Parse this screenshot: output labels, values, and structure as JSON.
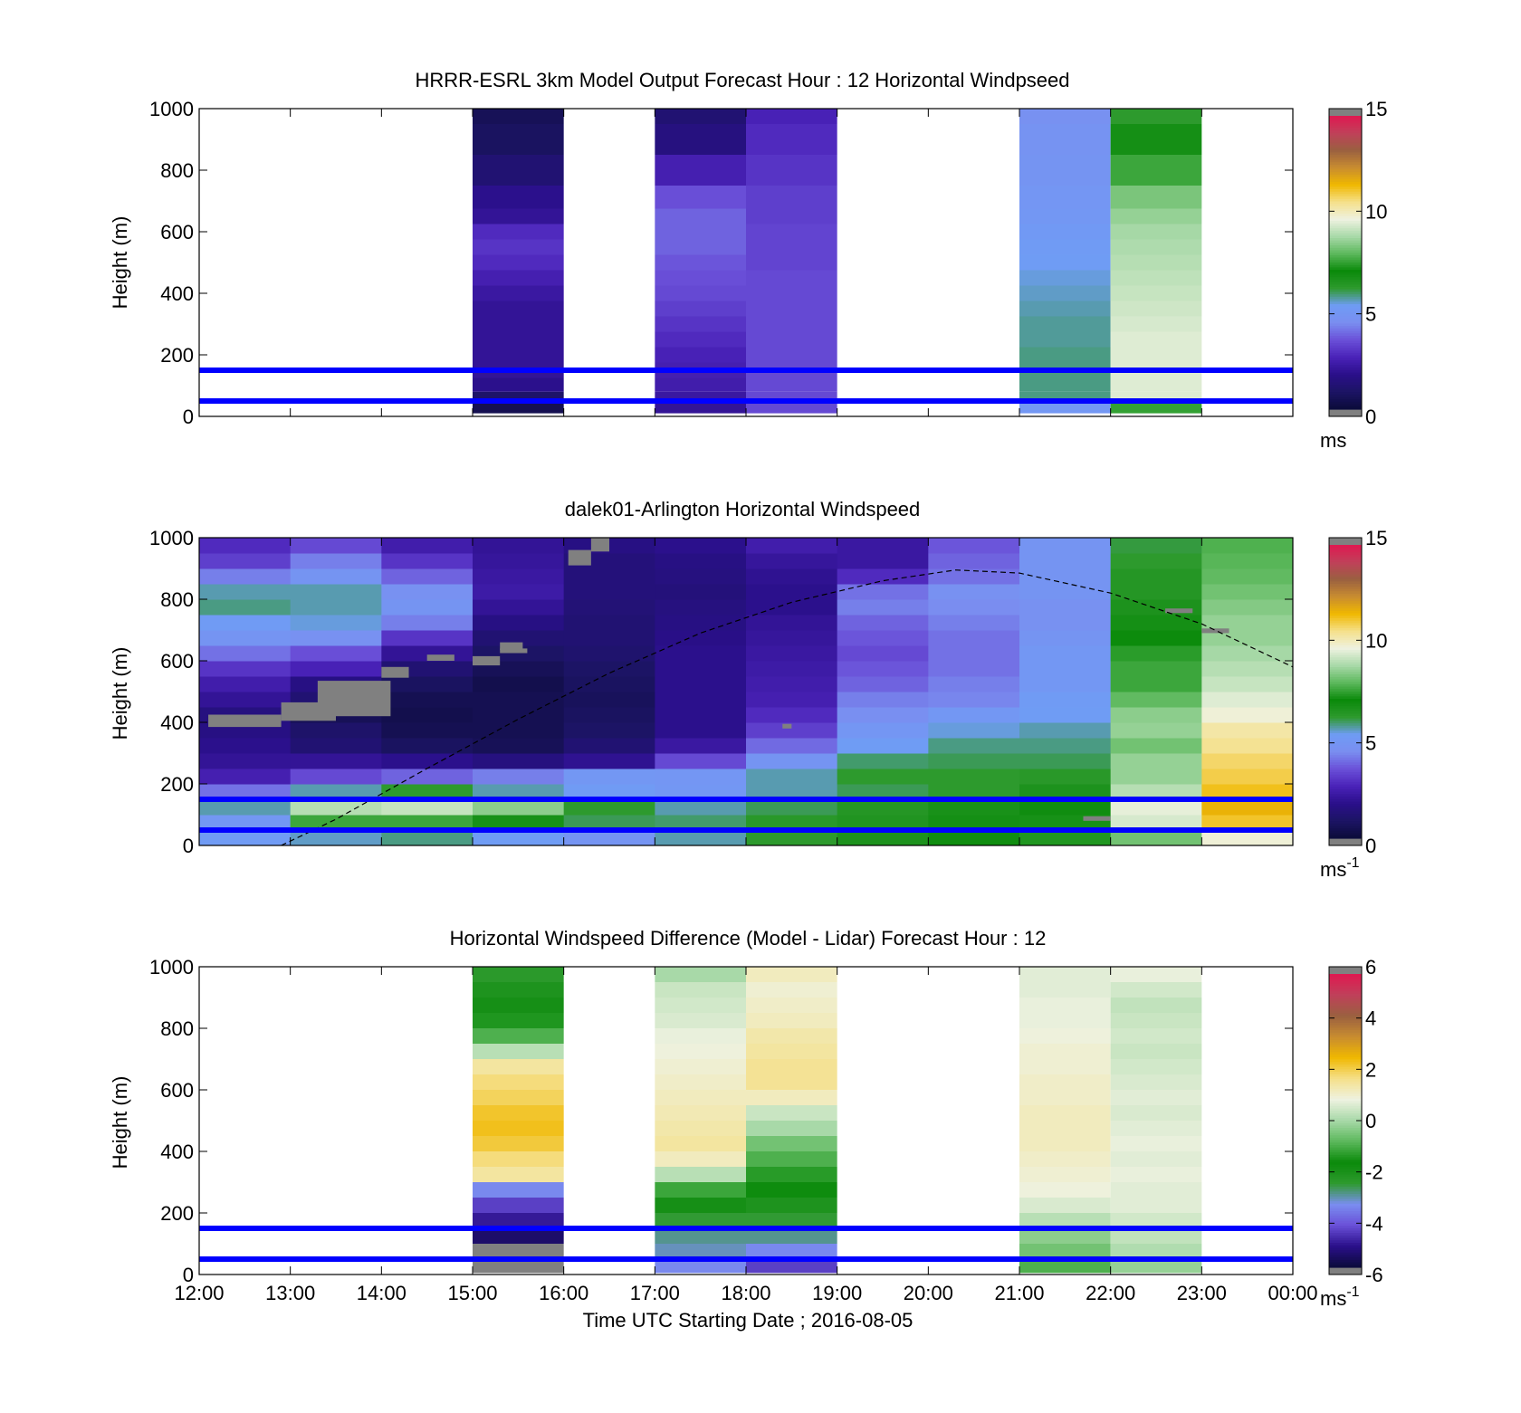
{
  "figure": {
    "x_tick_labels": [
      "12:00",
      "13:00",
      "14:00",
      "15:00",
      "16:00",
      "17:00",
      "18:00",
      "19:00",
      "20:00",
      "21:00",
      "22:00",
      "23:00",
      "00:00"
    ],
    "xlabel": "Time UTC  Starting Date ; 2016-08-05",
    "line_color": "#0000ff",
    "missing_color": "#808080"
  },
  "colormap": {
    "wind": [
      "#0b0b3a",
      "#1c1464",
      "#2a0f8a",
      "#4a22b8",
      "#6a50d8",
      "#7a8ef0",
      "#6f9cf5",
      "#2e9a2e",
      "#0a8a0a",
      "#5cb85c",
      "#a8d9a8",
      "#eef2e0",
      "#f5e08a",
      "#f0b800",
      "#c88c30",
      "#9a6040",
      "#c0405a",
      "#e01850"
    ],
    "diff": [
      "#0b0b3a",
      "#2a0f8a",
      "#6a50d8",
      "#7a8ef0",
      "#2e9a2e",
      "#0a8a0a",
      "#5cb85c",
      "#a8d9a8",
      "#eef2e0",
      "#f5e08a",
      "#f0b800",
      "#c88c30",
      "#9a6040",
      "#c0405a",
      "#e01850"
    ]
  },
  "chart_data": [
    {
      "type": "heatmap",
      "title": "HRRR-ESRL 3km Model Output   Forecast Hour : 12 Horizontal Windpseed",
      "ylabel": "Height (m)",
      "xlim": [
        12,
        24
      ],
      "ylim": [
        0,
        1000
      ],
      "y_ticks": [
        0,
        200,
        400,
        600,
        800,
        1000
      ],
      "reference_lines_m": [
        50,
        150
      ],
      "colorbar": {
        "range": [
          0,
          15
        ],
        "ticks": [
          0,
          5,
          10,
          15
        ],
        "unit": "ms"
      },
      "columns": [
        {
          "start_hour": 15,
          "end_hour": 16,
          "heights_m": [
            30,
            60,
            100,
            150,
            200,
            250,
            300,
            350,
            400,
            450,
            500,
            550,
            600,
            650,
            700,
            800,
            900,
            1000
          ],
          "values": [
            0.5,
            1.0,
            1.8,
            2.0,
            2.0,
            2.0,
            2.0,
            2.0,
            2.2,
            2.5,
            2.8,
            3.0,
            2.8,
            2.0,
            1.8,
            1.2,
            0.8,
            0.6
          ]
        },
        {
          "start_hour": 17,
          "end_hour": 18,
          "heights_m": [
            30,
            60,
            100,
            150,
            200,
            250,
            300,
            350,
            400,
            450,
            500,
            550,
            600,
            650,
            700,
            800,
            900,
            1000
          ],
          "values": [
            2.0,
            2.2,
            2.4,
            2.5,
            2.6,
            2.8,
            3.0,
            3.2,
            3.4,
            3.5,
            3.6,
            3.8,
            3.8,
            3.8,
            3.5,
            2.5,
            1.5,
            1.2
          ]
        },
        {
          "start_hour": 18,
          "end_hour": 19,
          "heights_m": [
            30,
            60,
            100,
            150,
            200,
            250,
            300,
            350,
            400,
            450,
            500,
            550,
            600,
            650,
            700,
            800,
            900,
            1000
          ],
          "values": [
            3.4,
            3.4,
            3.4,
            3.4,
            3.4,
            3.4,
            3.4,
            3.4,
            3.4,
            3.4,
            3.3,
            3.3,
            3.3,
            3.2,
            3.2,
            3.0,
            2.8,
            2.6
          ]
        },
        {
          "start_hour": 21,
          "end_hour": 22,
          "heights_m": [
            30,
            60,
            100,
            150,
            200,
            250,
            300,
            350,
            400,
            450,
            500,
            550,
            600,
            650,
            700,
            800,
            900,
            1000
          ],
          "values": [
            5.0,
            5.8,
            5.8,
            5.8,
            5.8,
            5.7,
            5.7,
            5.6,
            5.5,
            5.4,
            5.3,
            5.2,
            5.1,
            5.0,
            4.9,
            4.8,
            4.7,
            4.6
          ]
        },
        {
          "start_hour": 22,
          "end_hour": 23,
          "heights_m": [
            30,
            60,
            100,
            150,
            200,
            250,
            300,
            350,
            400,
            450,
            500,
            550,
            600,
            650,
            700,
            800,
            900,
            1000
          ],
          "values": [
            7.5,
            9.5,
            9.5,
            9.5,
            9.5,
            9.5,
            9.4,
            9.3,
            9.2,
            9.1,
            9.0,
            8.9,
            8.8,
            8.6,
            8.3,
            7.6,
            6.8,
            6.2
          ]
        }
      ]
    },
    {
      "type": "heatmap",
      "title": "dalek01-Arlington  Horizontal Windspeed",
      "ylabel": "Height (m)",
      "xlim": [
        12,
        24
      ],
      "ylim": [
        0,
        1000
      ],
      "y_ticks": [
        0,
        200,
        400,
        600,
        800,
        1000
      ],
      "reference_lines_m": [
        50,
        150
      ],
      "colorbar": {
        "range": [
          0,
          15
        ],
        "ticks": [
          0,
          5,
          10,
          15
        ],
        "unit": "ms",
        "unit_exponent": "-1"
      },
      "hour_columns": [
        12,
        13,
        14,
        15,
        16,
        17,
        18,
        19,
        20,
        21,
        22,
        23
      ],
      "heights_m": [
        25,
        75,
        125,
        175,
        225,
        275,
        325,
        375,
        425,
        475,
        525,
        575,
        625,
        675,
        725,
        775,
        825,
        875,
        925,
        975
      ],
      "values": [
        [
          5.2,
          5.5,
          5.8,
          5.3,
          4.8,
          5.6,
          6.2,
          6.6,
          6.9,
          7.3,
          8.2,
          9.8
        ],
        [
          5.0,
          7.6,
          7.6,
          7.2,
          6.0,
          5.9,
          6.3,
          6.5,
          6.8,
          7.2,
          9.4,
          11.2
        ],
        [
          5.6,
          9.0,
          9.2,
          8.5,
          6.2,
          5.6,
          6.0,
          6.4,
          6.7,
          6.9,
          9.6,
          11.6
        ],
        [
          4.0,
          5.6,
          6.2,
          5.6,
          5.2,
          5.0,
          5.6,
          6.0,
          6.2,
          6.6,
          9.0,
          11.3
        ],
        [
          2.5,
          3.4,
          3.8,
          4.2,
          5.0,
          4.9,
          5.6,
          6.2,
          6.2,
          6.3,
          8.6,
          11.0
        ],
        [
          2.0,
          2.0,
          1.8,
          1.5,
          1.9,
          3.4,
          4.8,
          5.9,
          6.0,
          6.0,
          8.6,
          10.8
        ],
        [
          1.8,
          1.2,
          0.8,
          0.6,
          1.2,
          2.2,
          3.9,
          5.3,
          5.8,
          5.8,
          8.2,
          10.5
        ],
        [
          1.6,
          1.0,
          0.5,
          0.5,
          0.9,
          1.8,
          3.2,
          4.9,
          5.4,
          5.6,
          8.6,
          10.3
        ],
        [
          1.5,
          0.6,
          0.4,
          0.5,
          0.8,
          1.8,
          2.8,
          4.5,
          5.0,
          5.3,
          8.5,
          9.8
        ],
        [
          2.0,
          1.2,
          0.5,
          0.5,
          0.7,
          1.8,
          2.5,
          4.2,
          4.3,
          5.2,
          8.0,
          9.5
        ],
        [
          2.4,
          1.6,
          0.8,
          0.4,
          0.8,
          1.8,
          2.4,
          3.8,
          4.2,
          5.0,
          7.6,
          9.2
        ],
        [
          3.0,
          2.6,
          1.2,
          0.6,
          0.9,
          1.8,
          2.3,
          3.6,
          4.0,
          5.0,
          7.6,
          9.0
        ],
        [
          4.0,
          3.5,
          2.0,
          0.9,
          1.1,
          1.8,
          2.2,
          3.4,
          4.0,
          5.0,
          7.4,
          8.8
        ],
        [
          4.8,
          4.6,
          3.0,
          1.2,
          1.2,
          1.7,
          2.1,
          3.6,
          4.0,
          4.8,
          7.0,
          8.6
        ],
        [
          5.2,
          5.4,
          4.2,
          1.6,
          1.2,
          1.6,
          2.0,
          3.8,
          4.2,
          4.6,
          6.8,
          8.6
        ],
        [
          5.8,
          5.6,
          4.8,
          2.0,
          1.3,
          1.5,
          1.8,
          4.2,
          4.4,
          4.6,
          6.6,
          8.4
        ],
        [
          5.6,
          5.6,
          4.6,
          2.3,
          1.4,
          1.4,
          1.8,
          4.0,
          4.6,
          4.8,
          6.4,
          8.2
        ],
        [
          4.2,
          4.8,
          3.8,
          2.2,
          1.4,
          1.5,
          1.9,
          2.8,
          4.0,
          4.8,
          6.4,
          8.0
        ],
        [
          3.2,
          4.2,
          3.0,
          2.1,
          1.4,
          1.6,
          2.1,
          2.2,
          3.8,
          4.8,
          6.2,
          7.9
        ],
        [
          2.8,
          3.4,
          2.4,
          2.0,
          1.6,
          1.8,
          2.4,
          2.2,
          3.6,
          4.8,
          6.1,
          7.8
        ]
      ],
      "missing_patches": [
        {
          "start_hour": 12.1,
          "end_hour": 12.9,
          "bottom_m": 385,
          "top_m": 425
        },
        {
          "start_hour": 12.9,
          "end_hour": 13.5,
          "bottom_m": 405,
          "top_m": 465
        },
        {
          "start_hour": 13.3,
          "end_hour": 14.1,
          "bottom_m": 420,
          "top_m": 535
        },
        {
          "start_hour": 14.0,
          "end_hour": 14.3,
          "bottom_m": 545,
          "top_m": 580
        },
        {
          "start_hour": 14.5,
          "end_hour": 14.8,
          "bottom_m": 600,
          "top_m": 620
        },
        {
          "start_hour": 15.0,
          "end_hour": 15.3,
          "bottom_m": 585,
          "top_m": 615
        },
        {
          "start_hour": 15.3,
          "end_hour": 15.6,
          "bottom_m": 625,
          "top_m": 640
        },
        {
          "start_hour": 15.3,
          "end_hour": 15.55,
          "bottom_m": 635,
          "top_m": 660
        },
        {
          "start_hour": 18.4,
          "end_hour": 18.5,
          "bottom_m": 380,
          "top_m": 395
        },
        {
          "start_hour": 21.7,
          "end_hour": 22.0,
          "bottom_m": 80,
          "top_m": 95
        },
        {
          "start_hour": 22.6,
          "end_hour": 22.9,
          "bottom_m": 755,
          "top_m": 770
        },
        {
          "start_hour": 23.0,
          "end_hour": 23.3,
          "bottom_m": 690,
          "top_m": 705
        },
        {
          "start_hour": 16.05,
          "end_hour": 16.3,
          "bottom_m": 910,
          "top_m": 960
        },
        {
          "start_hour": 16.3,
          "end_hour": 16.5,
          "bottom_m": 955,
          "top_m": 1000
        }
      ],
      "boundary_curve": {
        "style": "dashed",
        "x": [
          12.9,
          13.5,
          14.5,
          15.5,
          16.5,
          17.5,
          18.5,
          19.5,
          20.3,
          21.0,
          22.0,
          23.0,
          24.0
        ],
        "y": [
          0,
          85,
          250,
          410,
          560,
          690,
          790,
          860,
          895,
          885,
          820,
          720,
          580
        ]
      }
    },
    {
      "type": "heatmap",
      "title": "Horizontal Windspeed Difference (Model - Lidar) Forecast Hour : 12",
      "ylabel": "Height (m)",
      "xlim": [
        12,
        24
      ],
      "ylim": [
        0,
        1000
      ],
      "y_ticks": [
        0,
        200,
        400,
        600,
        800,
        1000
      ],
      "reference_lines_m": [
        50,
        150
      ],
      "colorbar": {
        "range": [
          -6,
          6
        ],
        "ticks": [
          -6,
          -4,
          -2,
          0,
          2,
          4,
          6
        ],
        "unit": "ms",
        "unit_exponent": "-1"
      },
      "columns": [
        {
          "start_hour": 15,
          "end_hour": 16,
          "heights_m": [
            25,
            75,
            125,
            175,
            225,
            275,
            325,
            375,
            425,
            475,
            525,
            575,
            625,
            675,
            725,
            775,
            825,
            875,
            925,
            975
          ],
          "values": [
            -6.5,
            -6.5,
            -5.5,
            -5.0,
            -4.5,
            -3.5,
            1.5,
            1.8,
            2.2,
            2.4,
            2.3,
            2.0,
            1.8,
            1.5,
            0.2,
            -1.0,
            -1.5,
            -2.0,
            -2.2,
            -2.5
          ]
        },
        {
          "start_hour": 17,
          "end_hour": 18,
          "heights_m": [
            25,
            75,
            125,
            175,
            225,
            275,
            325,
            375,
            425,
            475,
            525,
            575,
            625,
            675,
            725,
            775,
            825,
            875,
            925,
            975
          ],
          "values": [
            -3.5,
            -3.2,
            -3.0,
            -2.6,
            -2.0,
            -1.2,
            0.2,
            1.2,
            1.5,
            1.4,
            1.3,
            1.2,
            1.1,
            1.0,
            0.9,
            0.8,
            0.6,
            0.5,
            0.4,
            0.0
          ]
        },
        {
          "start_hour": 18,
          "end_hour": 19,
          "heights_m": [
            25,
            75,
            125,
            175,
            225,
            275,
            325,
            375,
            425,
            475,
            525,
            575,
            625,
            675,
            725,
            775,
            825,
            875,
            925,
            975
          ],
          "values": [
            -4.5,
            -3.5,
            -3.0,
            -2.6,
            -2.2,
            -1.8,
            -1.4,
            -1.0,
            -0.6,
            0.0,
            0.4,
            1.2,
            1.6,
            1.6,
            1.5,
            1.4,
            1.2,
            1.1,
            1.0,
            1.2
          ]
        },
        {
          "start_hour": 21,
          "end_hour": 22,
          "heights_m": [
            25,
            75,
            125,
            175,
            225,
            275,
            325,
            375,
            425,
            475,
            525,
            575,
            625,
            675,
            725,
            775,
            825,
            875,
            925,
            975
          ],
          "values": [
            -1.0,
            -0.6,
            -0.3,
            0.2,
            0.6,
            0.9,
            1.0,
            1.1,
            1.2,
            1.2,
            1.2,
            1.1,
            1.1,
            1.0,
            1.0,
            0.9,
            0.8,
            0.8,
            0.7,
            0.7
          ]
        },
        {
          "start_hour": 22,
          "end_hour": 23,
          "heights_m": [
            25,
            75,
            125,
            175,
            225,
            275,
            325,
            375,
            425,
            475,
            525,
            575,
            625,
            675,
            725,
            775,
            825,
            875,
            925,
            975
          ],
          "values": [
            -0.2,
            0.1,
            0.3,
            0.5,
            0.7,
            0.7,
            0.8,
            0.7,
            0.8,
            0.7,
            0.6,
            0.7,
            0.6,
            0.5,
            0.4,
            0.5,
            0.4,
            0.3,
            0.5,
            0.8
          ]
        }
      ]
    }
  ]
}
